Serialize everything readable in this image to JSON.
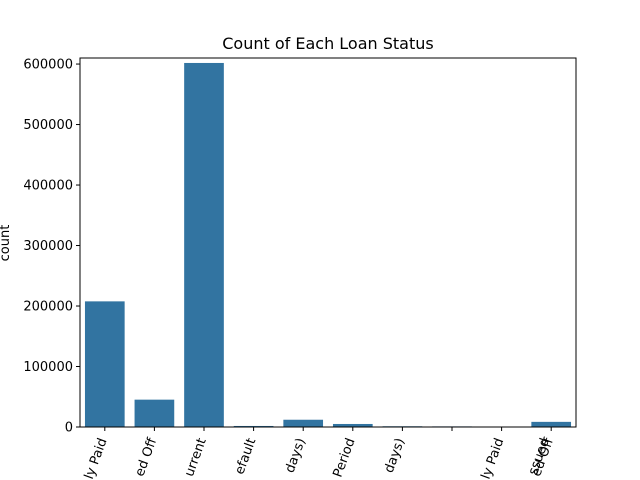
{
  "chart_data": {
    "type": "bar",
    "title": "Count of Each Loan Status",
    "xlabel": "",
    "ylabel": "count",
    "ylim": [
      0,
      610000
    ],
    "yticks": [
      0,
      100000,
      200000,
      300000,
      400000,
      500000,
      600000
    ],
    "bar_color": "#3274a1",
    "tick_rotation_deg": 70,
    "grid": false,
    "legend": "none",
    "categories": [
      "ly Paid",
      "ed Off",
      "urrent",
      "efault",
      "days)",
      "Period",
      "days)",
      "",
      "ly Paid",
      "ed Off"
    ],
    "extra_label_fragments": [
      "ssued"
    ],
    "values": [
      207700,
      45200,
      601800,
      1700,
      12000,
      5000,
      1200,
      1000,
      200,
      8500
    ]
  }
}
